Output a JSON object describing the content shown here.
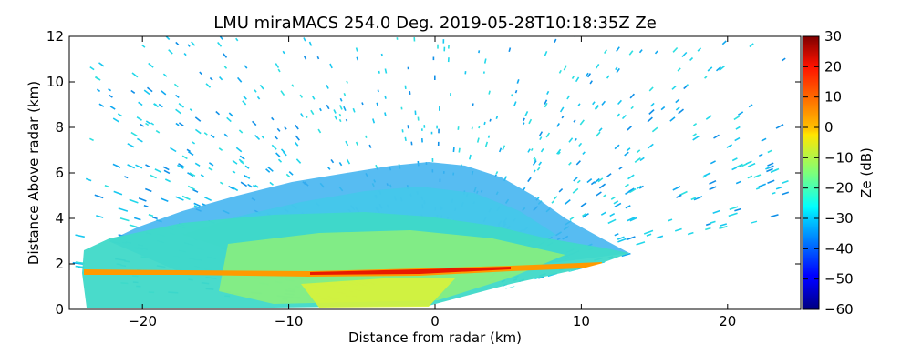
{
  "chart_data": {
    "type": "heatmap",
    "title": "LMU miraMACS 254.0 Deg. 2019-05-28T10:18:35Z  Ze",
    "xlabel": "Distance from radar (km)",
    "ylabel": "Distance Above radar  (km)",
    "xlim": [
      -25,
      25
    ],
    "ylim": [
      0,
      12
    ],
    "xticks": [
      -20,
      -10,
      0,
      10,
      20
    ],
    "xtick_labels": [
      "−20",
      "−10",
      "0",
      "10",
      "20"
    ],
    "yticks": [
      0,
      2,
      4,
      6,
      8,
      10,
      12
    ],
    "ytick_labels": [
      "0",
      "2",
      "4",
      "6",
      "8",
      "10",
      "12"
    ],
    "colorbar": {
      "label": "Ze (dB)",
      "range": [
        -60,
        30
      ],
      "ticks": [
        30,
        20,
        10,
        0,
        -10,
        -20,
        -30,
        -40,
        -50,
        -60
      ],
      "tick_labels": [
        "30",
        "20",
        "10",
        "0",
        "−10",
        "−20",
        "−30",
        "−40",
        "−50",
        "−60"
      ],
      "colormap": "jet"
    },
    "regions": [
      {
        "name": "sparse noise speckle",
        "x_range": [
          -24,
          23.5
        ],
        "y_range": [
          0,
          12
        ],
        "ze_db": -33
      },
      {
        "name": "ice cloud dome",
        "x_range": [
          -15,
          12
        ],
        "y_range": [
          3,
          6.5
        ],
        "ze_db": -25
      },
      {
        "name": "stratiform precipitation",
        "x_range": [
          -24,
          13
        ],
        "y_range": [
          0,
          4.5
        ],
        "ze_db": -12
      },
      {
        "name": "melting layer bright band",
        "x_range": [
          -24,
          11
        ],
        "y_range": [
          1.4,
          2.0
        ],
        "ze_db": 15
      }
    ]
  }
}
